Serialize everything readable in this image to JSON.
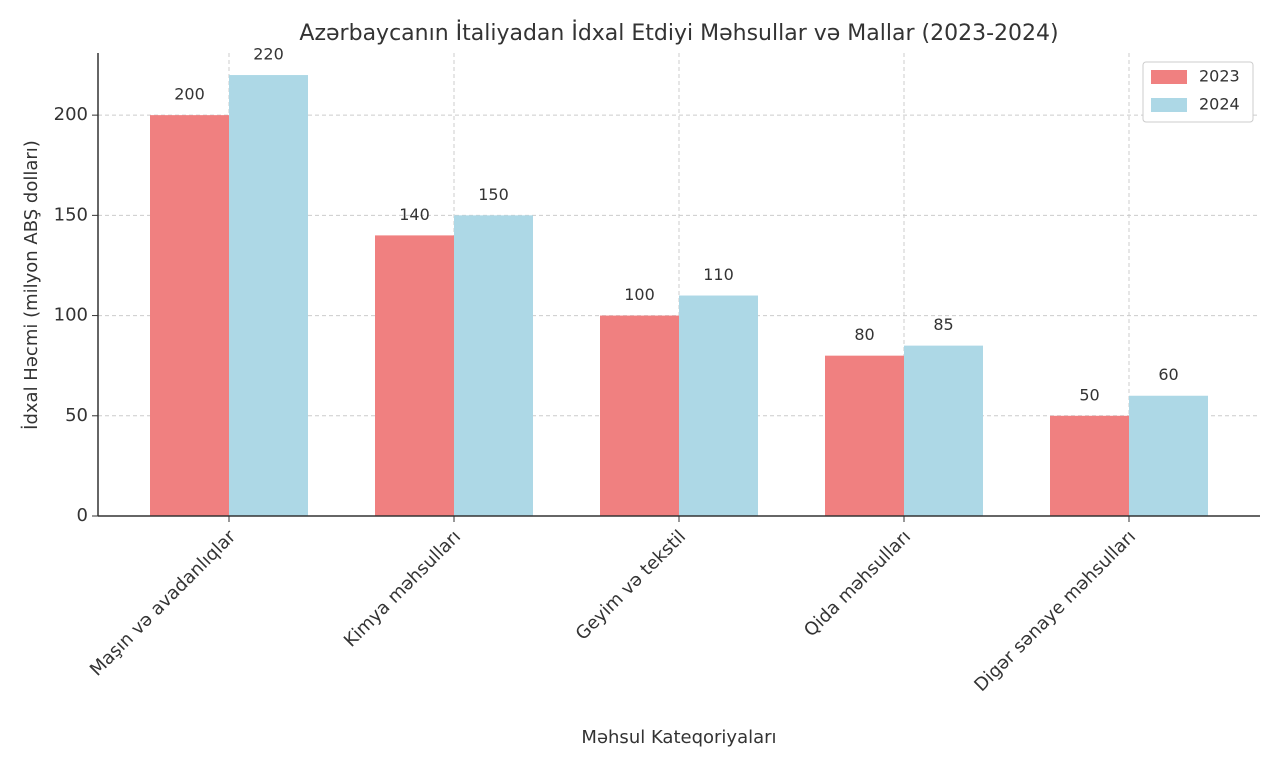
{
  "chart_data": {
    "type": "bar",
    "title": "Azərbaycanın İtaliyadan İdxal Etdiyi Məhsullar və Mallar (2023-2024)",
    "x_label": "Məhsul Kateqoriyaları",
    "y_label": "İdxal Həcmi (milyon ABŞ dolları)",
    "categories": [
      "Maşın və avadanlıqlar",
      "Kimya məhsulları",
      "Geyim və tekstil",
      "Qida məhsulları",
      "Digər sənaye məhsulları"
    ],
    "series": [
      {
        "name": "2023",
        "color": "#f08080",
        "values": [
          200,
          140,
          100,
          80,
          50
        ]
      },
      {
        "name": "2024",
        "color": "#add8e6",
        "values": [
          220,
          150,
          110,
          85,
          60
        ]
      }
    ],
    "ylim": [
      0,
      231
    ],
    "yticks": [
      0,
      50,
      100,
      150,
      200
    ],
    "grid": true,
    "legend": "upper right"
  }
}
